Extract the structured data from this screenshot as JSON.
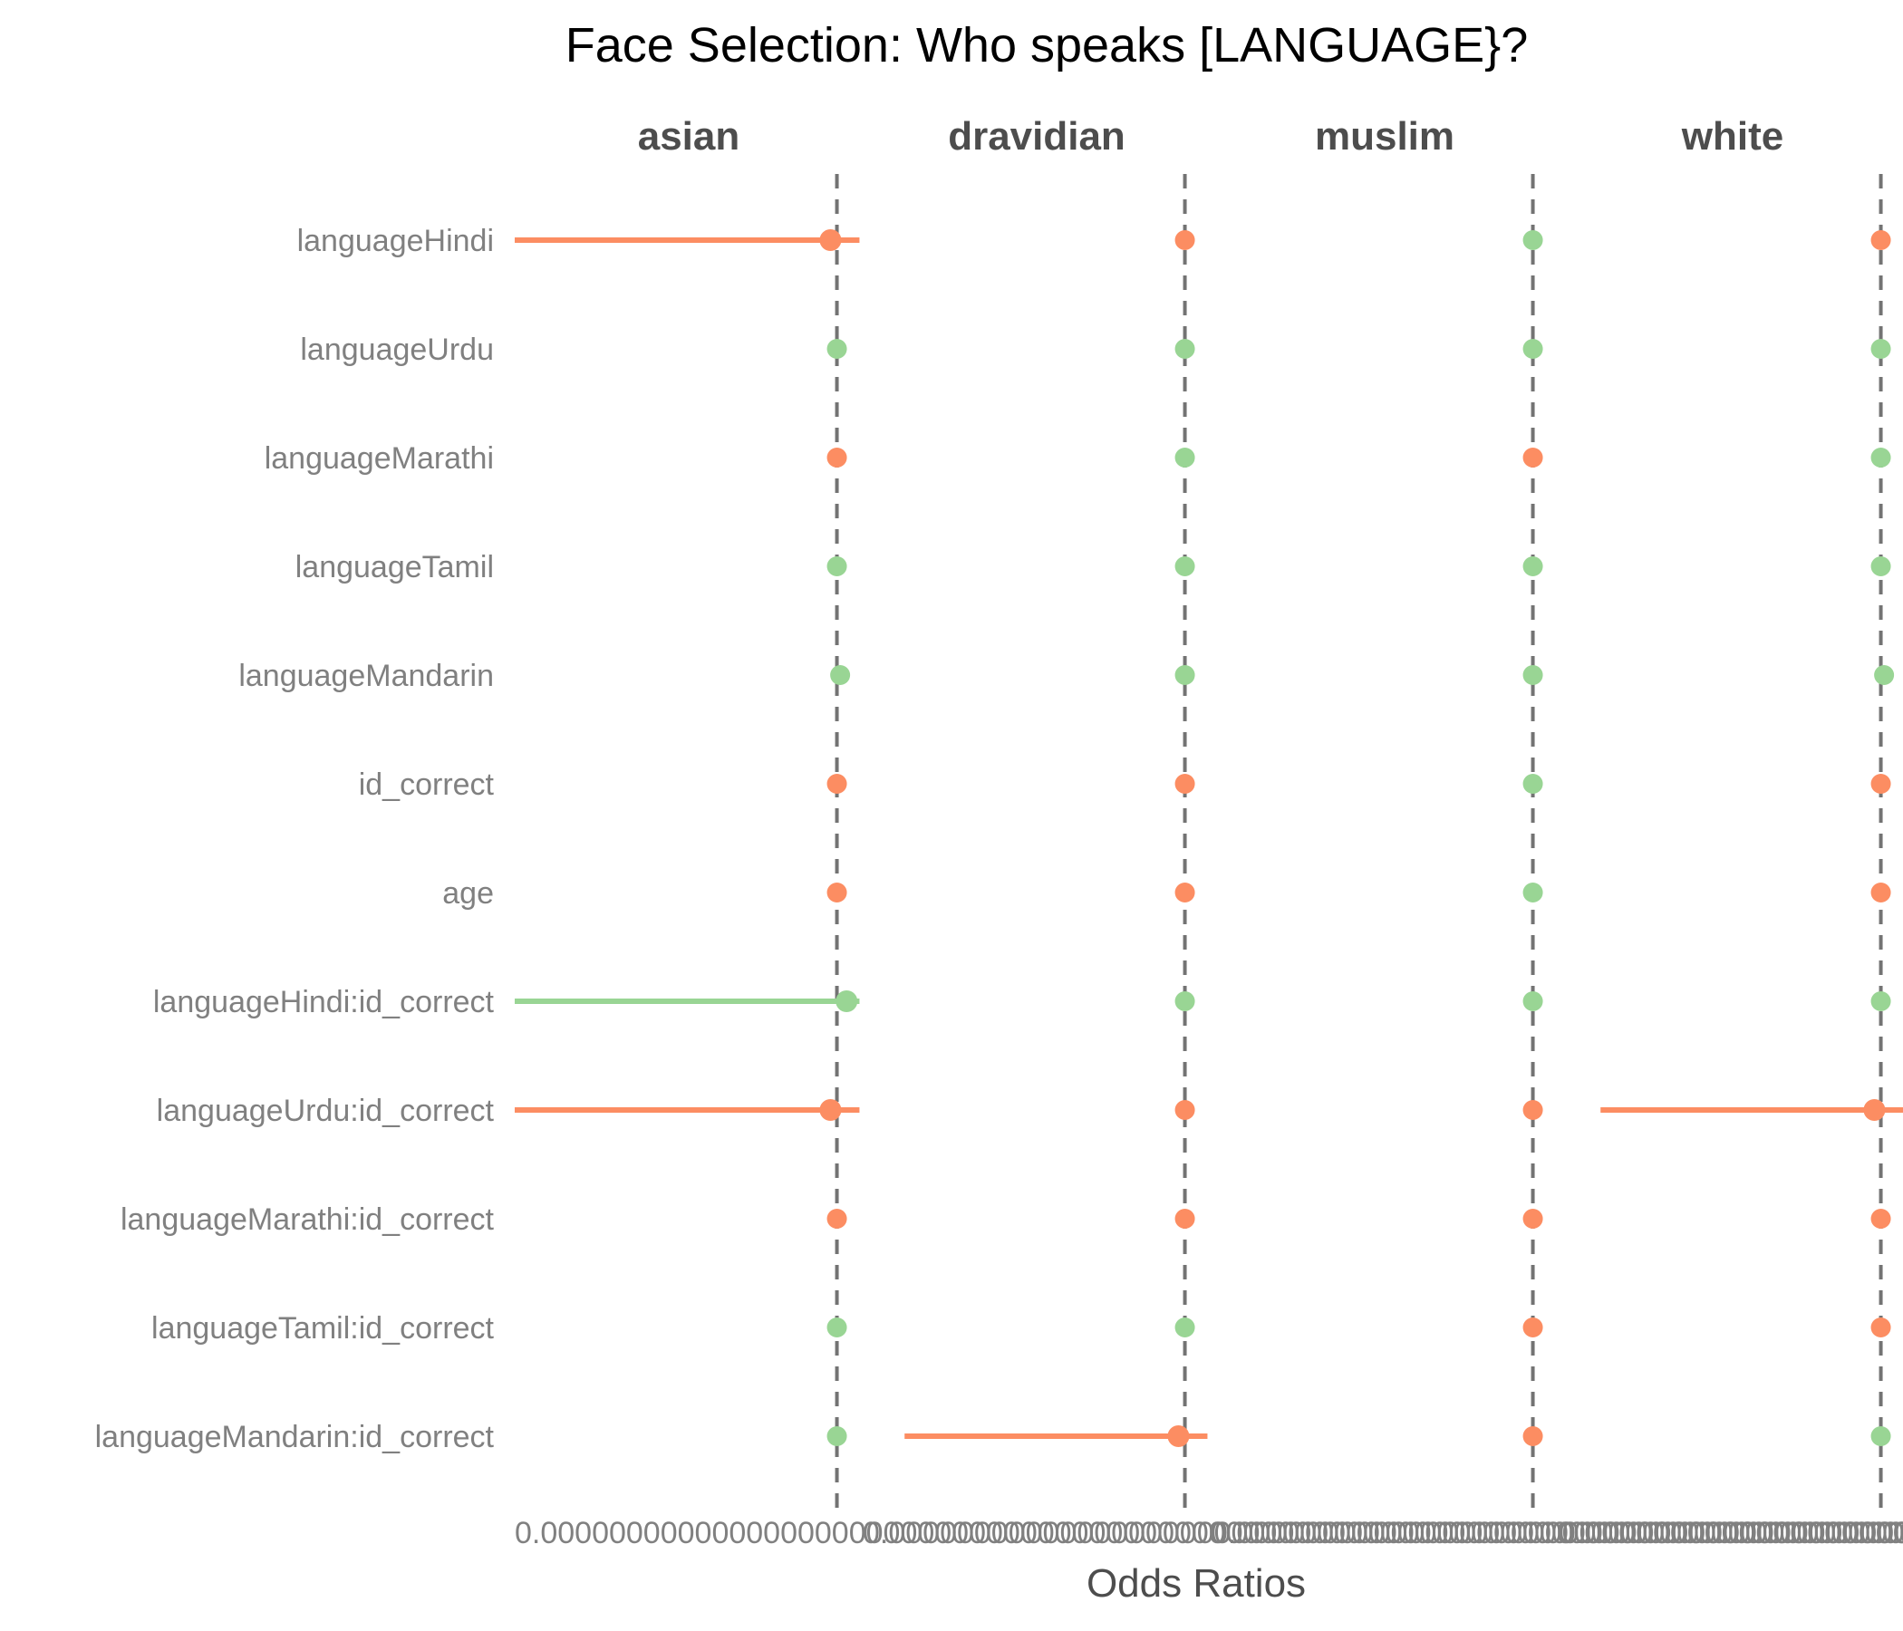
{
  "chart_data": {
    "type": "scatter",
    "title": "Face Selection: Who speaks [LANGUAGE}?",
    "xlabel": "Odds Ratios",
    "ylabel": "",
    "x_tick_label": "0.0000000000000000000000000000000000000000000000000000000000000000000000000000000000",
    "reference_line": 1,
    "grid": false,
    "legend": "none",
    "colors": {
      "significant": "#FC8D62",
      "not_significant": "#99D594",
      "refline": "#737373"
    },
    "facets": [
      "asian",
      "dravidian",
      "muslim",
      "white"
    ],
    "terms": [
      "languageHindi",
      "languageUrdu",
      "languageMarathi",
      "languageTamil",
      "languageMandarin",
      "id_correct",
      "age",
      "languageHindi:id_correct",
      "languageUrdu:id_correct",
      "languageMarathi:id_correct",
      "languageTamil:id_correct",
      "languageMandarin:id_correct"
    ],
    "series": [
      {
        "facet": "asian",
        "or": [
          0.98,
          1.0,
          1.0,
          1.0,
          1.01,
          1.0,
          1.0,
          1.03,
          0.98,
          1.0,
          1.0,
          1.0
        ],
        "low": [
          0,
          null,
          null,
          null,
          null,
          null,
          null,
          0,
          0,
          null,
          null,
          null
        ],
        "high": [
          1.07,
          null,
          null,
          null,
          null,
          null,
          null,
          1.07,
          1.07,
          null,
          null,
          null
        ],
        "significant": [
          true,
          false,
          true,
          false,
          false,
          true,
          true,
          false,
          true,
          true,
          false,
          false
        ]
      },
      {
        "facet": "dravidian",
        "or": [
          1.0,
          1.0,
          1.0,
          1.0,
          1.0,
          1.0,
          1.0,
          1.0,
          1.0,
          1.0,
          1.0,
          0.98
        ],
        "low": [
          null,
          null,
          null,
          null,
          null,
          null,
          null,
          null,
          null,
          null,
          null,
          0.13
        ],
        "high": [
          null,
          null,
          null,
          null,
          null,
          null,
          null,
          null,
          null,
          null,
          null,
          1.07
        ],
        "significant": [
          true,
          false,
          false,
          false,
          false,
          true,
          true,
          false,
          true,
          true,
          false,
          true
        ]
      },
      {
        "facet": "muslim",
        "or": [
          1.0,
          1.0,
          1.0,
          1.0,
          1.0,
          1.0,
          1.0,
          1.0,
          1.0,
          1.0,
          1.0,
          1.0
        ],
        "low": [
          null,
          null,
          null,
          null,
          null,
          null,
          null,
          null,
          null,
          null,
          null,
          null
        ],
        "high": [
          null,
          null,
          null,
          null,
          null,
          null,
          null,
          null,
          null,
          null,
          null,
          null
        ],
        "significant": [
          false,
          false,
          true,
          false,
          false,
          false,
          false,
          false,
          true,
          true,
          true,
          true
        ]
      },
      {
        "facet": "white",
        "or": [
          1.0,
          1.0,
          1.0,
          1.0,
          1.01,
          1.0,
          1.0,
          1.0,
          0.98,
          1.0,
          1.0,
          1.0
        ],
        "low": [
          null,
          null,
          null,
          null,
          null,
          null,
          null,
          null,
          0.13,
          null,
          null,
          null
        ],
        "high": [
          null,
          null,
          null,
          null,
          null,
          null,
          null,
          null,
          1.07,
          null,
          null,
          null
        ],
        "significant": [
          true,
          false,
          false,
          false,
          false,
          true,
          true,
          false,
          true,
          true,
          true,
          false
        ]
      }
    ],
    "xlim": [
      0,
      1.08
    ]
  }
}
